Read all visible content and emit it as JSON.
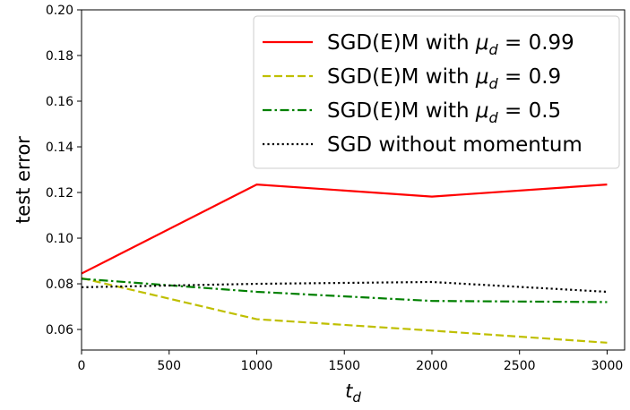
{
  "chart_data": {
    "type": "line",
    "xlabel": "t_d",
    "ylabel": "test error",
    "xlim": [
      0,
      3100
    ],
    "ylim": [
      0.051,
      0.2
    ],
    "xticks": [
      0,
      500,
      1000,
      1500,
      2000,
      2500,
      3000
    ],
    "yticks": [
      0.06,
      0.08,
      0.1,
      0.12,
      0.14,
      0.16,
      0.18,
      0.2
    ],
    "xtick_labels": [
      "0",
      "500",
      "1000",
      "1500",
      "2000",
      "2500",
      "3000"
    ],
    "ytick_labels": [
      "0.06",
      "0.08",
      "0.10",
      "0.12",
      "0.14",
      "0.16",
      "0.18",
      "0.20"
    ],
    "grid": false,
    "legend_position": "top-right",
    "x": [
      0,
      1000,
      2000,
      3000
    ],
    "series": [
      {
        "name": "SGD(E)M with μ_d = 0.99",
        "values": [
          0.0845,
          0.1235,
          0.1182,
          0.1235
        ],
        "color": "#ff0000",
        "dash": "solid"
      },
      {
        "name": "SGD(E)M with μ_d = 0.9",
        "values": [
          0.0825,
          0.0645,
          0.0595,
          0.0542
        ],
        "color": "#bfbf00",
        "dash": "dashed"
      },
      {
        "name": "SGD(E)M with μ_d = 0.5",
        "values": [
          0.0822,
          0.0765,
          0.0725,
          0.072
        ],
        "color": "#008000",
        "dash": "dashdot"
      },
      {
        "name": "SGD without momentum",
        "values": [
          0.0785,
          0.08,
          0.0808,
          0.0765
        ],
        "color": "#000000",
        "dash": "dotted"
      }
    ]
  }
}
